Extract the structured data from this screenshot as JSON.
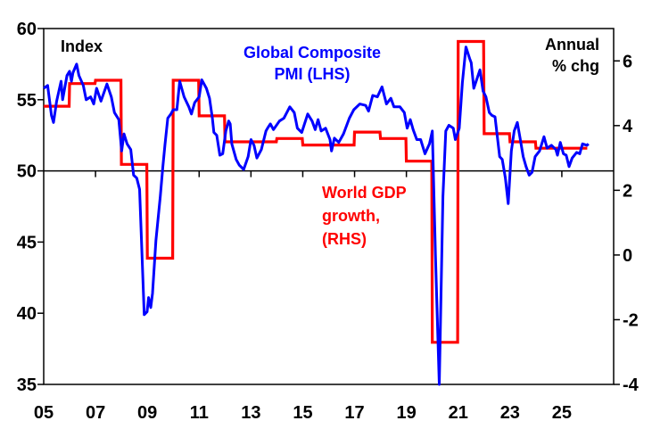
{
  "chart_data": {
    "type": "line",
    "title": "",
    "xlabel": "",
    "ylabel_left": "Index",
    "ylabel_right_lines": [
      "Annual",
      "% chg"
    ],
    "xlim": [
      2005,
      2027
    ],
    "ylim_left": [
      35,
      60
    ],
    "ylim_right": [
      -4,
      7
    ],
    "grid": false,
    "x_ticks": [
      2005,
      2007,
      2009,
      2011,
      2013,
      2015,
      2017,
      2019,
      2021,
      2023,
      2025
    ],
    "x_tick_labels": [
      "05",
      "07",
      "09",
      "11",
      "13",
      "15",
      "17",
      "19",
      "21",
      "23",
      "25"
    ],
    "y_left_ticks": [
      35,
      40,
      45,
      50,
      55,
      60
    ],
    "y_left_tick_labels": [
      "35",
      "40",
      "45",
      "50",
      "55",
      "60"
    ],
    "y_right_ticks": [
      -4,
      -2,
      0,
      2,
      4,
      6
    ],
    "y_right_tick_labels": [
      "-4",
      "-2",
      "0",
      "2",
      "4",
      "6"
    ],
    "reference_line_left": 50,
    "series": [
      {
        "name": "Global Composite PMI (LHS)",
        "label_lines": [
          "Global Composite",
          "PMI (LHS)"
        ],
        "axis": "left",
        "color": "#0000ff",
        "points": [
          [
            2005.0,
            55.8
          ],
          [
            2005.15,
            56.0
          ],
          [
            2005.3,
            53.9
          ],
          [
            2005.38,
            53.4
          ],
          [
            2005.5,
            54.9
          ],
          [
            2005.67,
            56.3
          ],
          [
            2005.73,
            55.0
          ],
          [
            2005.9,
            56.7
          ],
          [
            2006.0,
            57.0
          ],
          [
            2006.07,
            56.3
          ],
          [
            2006.13,
            56.9
          ],
          [
            2006.27,
            57.5
          ],
          [
            2006.36,
            56.7
          ],
          [
            2006.53,
            56.0
          ],
          [
            2006.64,
            55.0
          ],
          [
            2006.81,
            55.2
          ],
          [
            2006.93,
            54.7
          ],
          [
            2007.04,
            55.8
          ],
          [
            2007.21,
            54.9
          ],
          [
            2007.44,
            56.1
          ],
          [
            2007.61,
            55.2
          ],
          [
            2007.73,
            54.1
          ],
          [
            2007.9,
            53.6
          ],
          [
            2008.01,
            51.4
          ],
          [
            2008.1,
            52.6
          ],
          [
            2008.22,
            51.9
          ],
          [
            2008.36,
            51.5
          ],
          [
            2008.47,
            49.7
          ],
          [
            2008.59,
            49.5
          ],
          [
            2008.7,
            48.7
          ],
          [
            2008.88,
            39.9
          ],
          [
            2008.99,
            40.1
          ],
          [
            2009.05,
            41.1
          ],
          [
            2009.13,
            40.4
          ],
          [
            2009.2,
            41.4
          ],
          [
            2009.33,
            45.1
          ],
          [
            2009.5,
            48.2
          ],
          [
            2009.6,
            50.3
          ],
          [
            2009.68,
            51.8
          ],
          [
            2009.79,
            53.7
          ],
          [
            2009.91,
            54.0
          ],
          [
            2010.0,
            54.3
          ],
          [
            2010.14,
            54.3
          ],
          [
            2010.25,
            56.3
          ],
          [
            2010.42,
            55.2
          ],
          [
            2010.6,
            54.5
          ],
          [
            2010.7,
            54.0
          ],
          [
            2010.83,
            54.8
          ],
          [
            2011.0,
            55.2
          ],
          [
            2011.1,
            56.4
          ],
          [
            2011.28,
            55.8
          ],
          [
            2011.4,
            55.1
          ],
          [
            2011.51,
            53.7
          ],
          [
            2011.57,
            52.7
          ],
          [
            2011.68,
            52.5
          ],
          [
            2011.8,
            51.1
          ],
          [
            2011.91,
            51.2
          ],
          [
            2012.03,
            52.8
          ],
          [
            2012.14,
            53.5
          ],
          [
            2012.2,
            53.3
          ],
          [
            2012.26,
            51.9
          ],
          [
            2012.43,
            50.8
          ],
          [
            2012.55,
            50.4
          ],
          [
            2012.72,
            50.1
          ],
          [
            2012.89,
            51.0
          ],
          [
            2013.0,
            52.2
          ],
          [
            2013.12,
            51.8
          ],
          [
            2013.23,
            50.9
          ],
          [
            2013.4,
            51.5
          ],
          [
            2013.58,
            52.8
          ],
          [
            2013.64,
            53.0
          ],
          [
            2013.75,
            53.3
          ],
          [
            2013.87,
            52.9
          ],
          [
            2014.1,
            53.5
          ],
          [
            2014.27,
            53.7
          ],
          [
            2014.5,
            54.5
          ],
          [
            2014.67,
            54.1
          ],
          [
            2014.79,
            53.0
          ],
          [
            2014.96,
            52.7
          ],
          [
            2015.19,
            54.0
          ],
          [
            2015.36,
            53.5
          ],
          [
            2015.48,
            52.9
          ],
          [
            2015.59,
            53.6
          ],
          [
            2015.71,
            52.8
          ],
          [
            2015.88,
            53.0
          ],
          [
            2016.05,
            52.2
          ],
          [
            2016.11,
            51.4
          ],
          [
            2016.22,
            52.3
          ],
          [
            2016.39,
            52.0
          ],
          [
            2016.57,
            52.6
          ],
          [
            2016.8,
            53.7
          ],
          [
            2016.97,
            54.3
          ],
          [
            2017.2,
            54.7
          ],
          [
            2017.43,
            54.6
          ],
          [
            2017.54,
            54.2
          ],
          [
            2017.7,
            55.3
          ],
          [
            2017.88,
            55.2
          ],
          [
            2018.06,
            55.9
          ],
          [
            2018.23,
            54.7
          ],
          [
            2018.4,
            55.1
          ],
          [
            2018.52,
            54.5
          ],
          [
            2018.75,
            54.5
          ],
          [
            2018.92,
            54.1
          ],
          [
            2019.03,
            53.0
          ],
          [
            2019.15,
            53.6
          ],
          [
            2019.26,
            52.9
          ],
          [
            2019.4,
            52.2
          ],
          [
            2019.55,
            52.2
          ],
          [
            2019.72,
            51.2
          ],
          [
            2019.89,
            51.9
          ],
          [
            2020.0,
            52.8
          ],
          [
            2020.12,
            44.1
          ],
          [
            2020.27,
            35.0
          ],
          [
            2020.41,
            48.2
          ],
          [
            2020.52,
            52.8
          ],
          [
            2020.64,
            53.2
          ],
          [
            2020.81,
            53.0
          ],
          [
            2020.89,
            52.2
          ],
          [
            2021.04,
            53.0
          ],
          [
            2021.16,
            56.2
          ],
          [
            2021.3,
            58.7
          ],
          [
            2021.44,
            57.9
          ],
          [
            2021.5,
            57.6
          ],
          [
            2021.6,
            55.8
          ],
          [
            2021.84,
            57.1
          ],
          [
            2021.96,
            55.6
          ],
          [
            2022.07,
            55.2
          ],
          [
            2022.2,
            54.1
          ],
          [
            2022.3,
            53.9
          ],
          [
            2022.42,
            53.8
          ],
          [
            2022.6,
            51.0
          ],
          [
            2022.7,
            50.8
          ],
          [
            2022.82,
            49.5
          ],
          [
            2022.93,
            47.7
          ],
          [
            2023.05,
            51.4
          ],
          [
            2023.16,
            52.8
          ],
          [
            2023.28,
            53.4
          ],
          [
            2023.39,
            52.3
          ],
          [
            2023.51,
            51.0
          ],
          [
            2023.62,
            50.3
          ],
          [
            2023.74,
            49.7
          ],
          [
            2023.85,
            49.9
          ],
          [
            2023.97,
            51.0
          ],
          [
            2024.14,
            51.4
          ],
          [
            2024.31,
            52.4
          ],
          [
            2024.43,
            51.6
          ],
          [
            2024.6,
            51.8
          ],
          [
            2024.77,
            51.5
          ],
          [
            2024.83,
            51.1
          ],
          [
            2024.94,
            52.0
          ],
          [
            2025.06,
            51.2
          ],
          [
            2025.17,
            51.1
          ],
          [
            2025.28,
            50.3
          ],
          [
            2025.4,
            50.9
          ],
          [
            2025.57,
            51.3
          ],
          [
            2025.69,
            51.2
          ],
          [
            2025.8,
            51.9
          ],
          [
            2025.97,
            51.8
          ],
          [
            2026.03,
            51.9
          ]
        ]
      },
      {
        "name": "World GDP growth, (RHS)",
        "label_lines": [
          "World GDP",
          "growth,",
          "(RHS)"
        ],
        "axis": "right",
        "color": "#ff0000",
        "step": "annual",
        "years": [
          2005,
          2006,
          2007,
          2008,
          2009,
          2010,
          2011,
          2012,
          2013,
          2014,
          2015,
          2016,
          2017,
          2018,
          2019,
          2020,
          2021,
          2022,
          2023,
          2024,
          2025
        ],
        "values": [
          4.6,
          5.3,
          5.4,
          2.8,
          -0.1,
          5.4,
          4.3,
          3.5,
          3.5,
          3.6,
          3.4,
          3.4,
          3.8,
          3.6,
          2.9,
          -2.7,
          6.6,
          3.75,
          3.5,
          3.3,
          3.3
        ]
      }
    ],
    "legend": "inline-annotations"
  }
}
